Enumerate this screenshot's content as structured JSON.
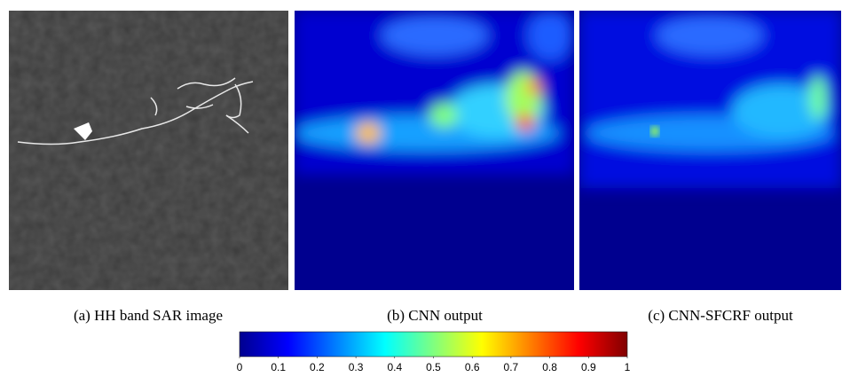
{
  "panels": [
    {
      "caption": "(a) HH band SAR image"
    },
    {
      "caption": "(b) CNN output"
    },
    {
      "caption": "(c) CNN-SFCRF output"
    }
  ],
  "colorbar": {
    "range": [
      0,
      1
    ],
    "ticks": [
      0,
      0.1,
      0.2,
      0.3,
      0.4,
      0.5,
      0.6,
      0.7,
      0.8,
      0.9,
      1
    ]
  }
}
